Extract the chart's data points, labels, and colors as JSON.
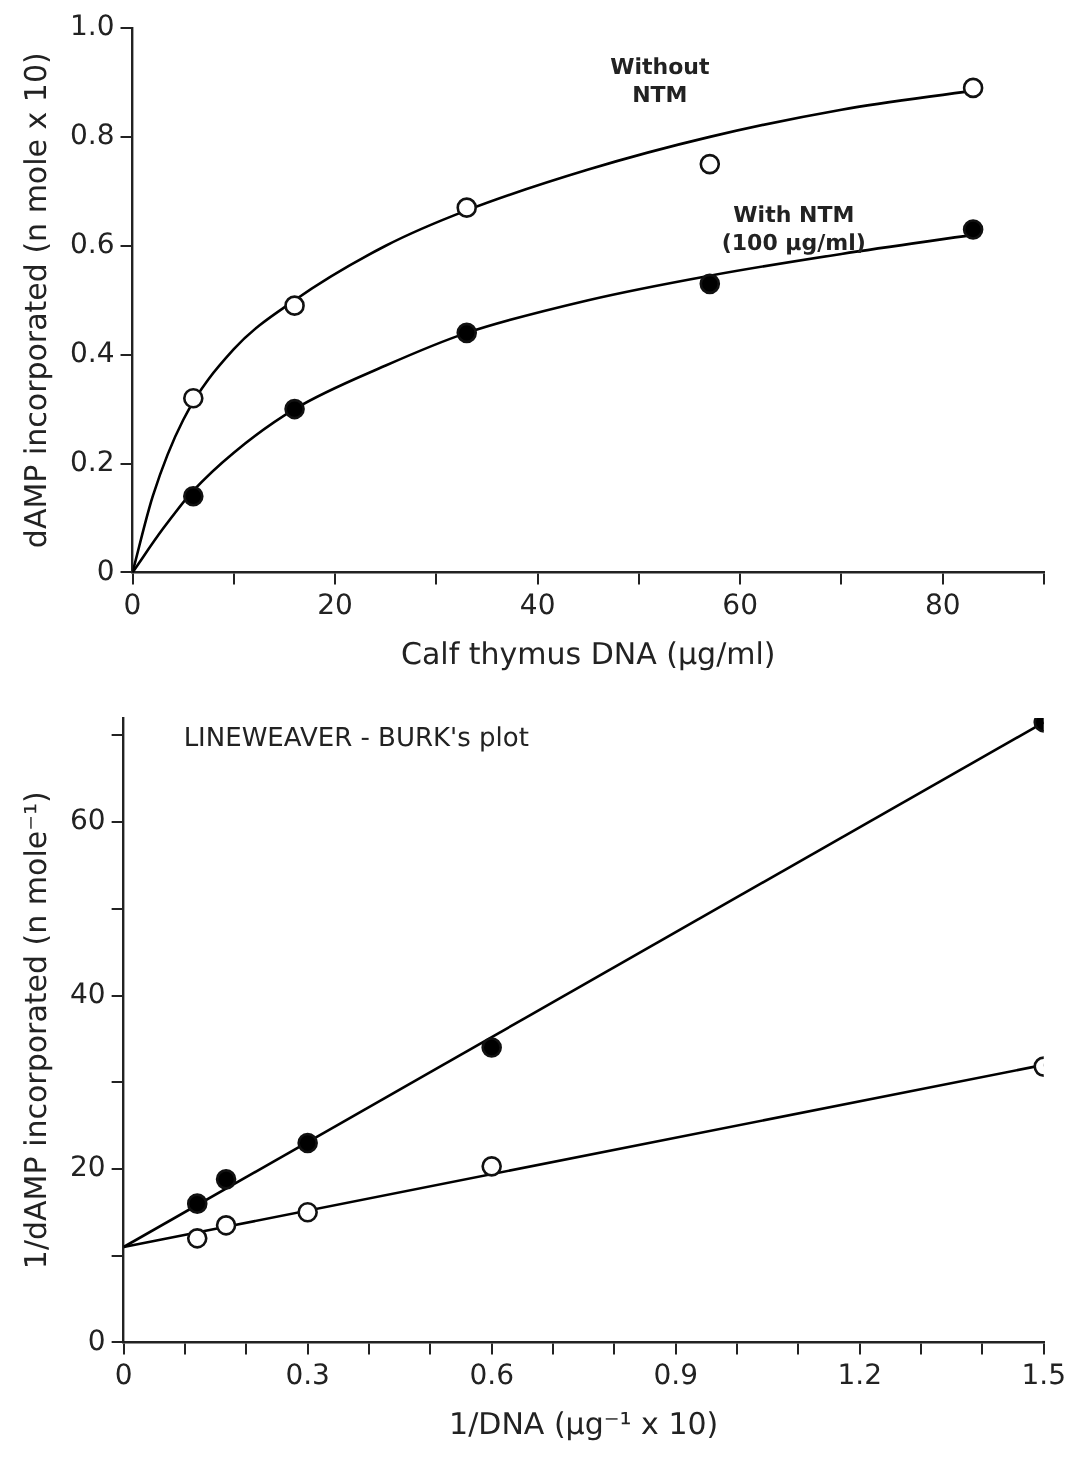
{
  "chart_data": [
    {
      "type": "scatter",
      "xlabel": "Calf thymus DNA (µg/ml)",
      "ylabel": "dAMP incorporated (n mole x 10)",
      "xlim": [
        0,
        90
      ],
      "xticks": [
        0,
        {
          "value": 10,
          "label": null
        },
        20,
        {
          "value": 30,
          "label": null
        },
        40,
        {
          "value": 50,
          "label": null
        },
        60,
        {
          "value": 70,
          "label": null
        },
        80,
        {
          "value": 90,
          "label": null
        }
      ],
      "ylim": [
        0,
        1.0
      ],
      "yticks": [
        0,
        0.2,
        0.4,
        0.6,
        0.8,
        {
          "value": 1.0,
          "label": "1.0"
        }
      ],
      "grid": false,
      "legend": false,
      "series": [
        {
          "name": "Without NTM",
          "type": "scatter",
          "marker": "circle",
          "color": "#ffffff",
          "x": [
            6,
            16,
            33,
            57,
            83
          ],
          "values": [
            0.32,
            0.49,
            0.67,
            0.75,
            0.89
          ]
        },
        {
          "name": "With NTM (100 µg/ml)",
          "type": "scatter",
          "marker": "circle",
          "color": "#000000",
          "x": [
            6,
            16,
            33,
            57,
            83
          ],
          "values": [
            0.14,
            0.3,
            0.44,
            0.53,
            0.63
          ]
        },
        {
          "type": "line",
          "marker": "none",
          "color": "#000000",
          "x": [
            0,
            2,
            5,
            10,
            16,
            25,
            33,
            45,
            57,
            70,
            83
          ],
          "values": [
            0,
            0.14,
            0.28,
            0.41,
            0.5,
            0.6,
            0.665,
            0.74,
            0.8,
            0.85,
            0.885
          ]
        },
        {
          "type": "line",
          "marker": "none",
          "color": "#000000",
          "x": [
            0,
            3,
            6,
            10,
            16,
            25,
            33,
            45,
            57,
            70,
            83
          ],
          "values": [
            0,
            0.08,
            0.15,
            0.22,
            0.3,
            0.38,
            0.44,
            0.5,
            0.545,
            0.585,
            0.62
          ]
        }
      ]
    },
    {
      "type": "scatter",
      "title": "LINEWEAVER - BURK's plot",
      "xlabel": "1/DNA (µg⁻¹ x 10)",
      "ylabel": "1/dAMP incorporated (n mole⁻¹)",
      "xlim": [
        0,
        1.5
      ],
      "xticks": [
        0,
        {
          "value": 0.1,
          "label": null
        },
        {
          "value": 0.2,
          "label": null
        },
        0.3,
        {
          "value": 0.4,
          "label": null
        },
        {
          "value": 0.5,
          "label": null
        },
        0.6,
        {
          "value": 0.7,
          "label": null
        },
        {
          "value": 0.8,
          "label": null
        },
        0.9,
        {
          "value": 1.0,
          "label": null
        },
        {
          "value": 1.1,
          "label": null
        },
        1.2,
        {
          "value": 1.3,
          "label": null
        },
        {
          "value": 1.4,
          "label": null
        },
        1.5
      ],
      "ylim": [
        0,
        72
      ],
      "yticks": [
        0,
        {
          "value": 10,
          "label": null
        },
        20,
        {
          "value": 30,
          "label": null
        },
        40,
        {
          "value": 50,
          "label": null
        },
        60,
        {
          "value": 70,
          "label": null
        }
      ],
      "grid": false,
      "legend": false,
      "series": [
        {
          "type": "scatter",
          "marker": "circle",
          "color": "#000000",
          "x": [
            0.12,
            0.167,
            0.3,
            0.6,
            1.5
          ],
          "values": [
            16,
            18.8,
            23,
            34,
            71.5
          ]
        },
        {
          "type": "scatter",
          "marker": "circle",
          "color": "#ffffff",
          "x": [
            0.12,
            0.167,
            0.3,
            0.6,
            1.5
          ],
          "values": [
            12,
            13.5,
            15,
            20.3,
            31.8
          ]
        },
        {
          "type": "line",
          "marker": "none",
          "color": "#000000",
          "x": [
            0,
            1.5
          ],
          "values": [
            11,
            71.5
          ]
        },
        {
          "type": "line",
          "marker": "none",
          "color": "#000000",
          "x": [
            0,
            1.5
          ],
          "values": [
            11,
            32
          ]
        }
      ]
    }
  ]
}
